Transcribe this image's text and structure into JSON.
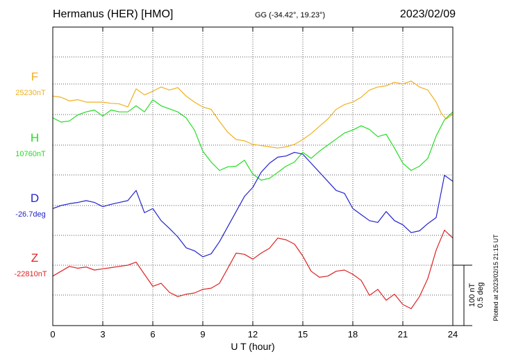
{
  "header": {
    "station": "Hermanus (HER)  [HMO]",
    "coords": "GG (-34.42°,  19.23°)",
    "date": "2023/02/09"
  },
  "footer": {
    "plotted": "Plotted at 2023/02/15 21:15 UT"
  },
  "scale": {
    "nt": "100 nT",
    "deg": "0.5 deg"
  },
  "chart_data": {
    "type": "line",
    "xlabel": "U T (hour)",
    "xlim": [
      0,
      24
    ],
    "xticks": [
      "0",
      "3",
      "6",
      "9",
      "12",
      "15",
      "18",
      "21",
      "24"
    ],
    "grid": true,
    "series": [
      {
        "name": "F",
        "baseline_label": "25230nT",
        "color": "#f0b020",
        "x": [
          0,
          0.5,
          1,
          1.5,
          2,
          2.5,
          3,
          3.5,
          4,
          4.5,
          5,
          5.5,
          6,
          6.5,
          7,
          7.5,
          8,
          8.5,
          9,
          9.5,
          10,
          10.5,
          11,
          11.5,
          12,
          12.5,
          13,
          13.5,
          14,
          14.5,
          15,
          15.5,
          16,
          16.5,
          17,
          17.5,
          18,
          18.5,
          19,
          19.5,
          20,
          20.5,
          21,
          21.5,
          22,
          22.5,
          23,
          23.3,
          23.6,
          24
        ],
        "values": [
          -20,
          -22,
          -28,
          -26,
          -30,
          -30,
          -30,
          -32,
          -33,
          -38,
          -8,
          -18,
          -12,
          -5,
          -10,
          -6,
          -20,
          -30,
          -38,
          -42,
          -62,
          -80,
          -92,
          -94,
          -100,
          -102,
          -104,
          -106,
          -104,
          -100,
          -92,
          -82,
          -70,
          -58,
          -42,
          -34,
          -30,
          -22,
          -10,
          -5,
          -3,
          3,
          0,
          5,
          -5,
          -10,
          -30,
          -48,
          -58,
          -50
        ]
      },
      {
        "name": "H",
        "baseline_label": "10760nT",
        "color": "#22dd22",
        "x": [
          0,
          0.5,
          1,
          1.5,
          2,
          2.5,
          3,
          3.5,
          4,
          4.5,
          5,
          5.5,
          6,
          6.5,
          7,
          7.5,
          8,
          8.5,
          9,
          9.5,
          10,
          10.5,
          11,
          11.5,
          12,
          12.5,
          13,
          13.5,
          14,
          14.5,
          15,
          15.5,
          16,
          16.5,
          17,
          17.5,
          18,
          18.5,
          19,
          19.5,
          20,
          20.5,
          21,
          21.5,
          22,
          22.5,
          23,
          23.5,
          24
        ],
        "values": [
          45,
          38,
          40,
          50,
          55,
          58,
          48,
          58,
          55,
          55,
          65,
          55,
          75,
          65,
          60,
          55,
          45,
          25,
          -10,
          -28,
          -42,
          -36,
          -35,
          -25,
          -48,
          -58,
          -55,
          -45,
          -35,
          -28,
          -12,
          -22,
          -10,
          0,
          10,
          20,
          25,
          32,
          26,
          14,
          18,
          -5,
          -30,
          -42,
          -35,
          -22,
          15,
          42,
          55
        ]
      },
      {
        "name": "D",
        "baseline_label": "-26.7deg",
        "color": "#2222cc",
        "x": [
          0,
          0.5,
          1,
          1.5,
          2,
          2.5,
          3,
          3.5,
          4,
          4.5,
          5,
          5.5,
          6,
          6.5,
          7,
          7.5,
          8,
          8.5,
          9,
          9.5,
          10,
          10.5,
          11,
          11.5,
          12,
          12.5,
          13,
          13.5,
          14,
          14.5,
          15,
          15.5,
          16,
          16.5,
          17,
          17.5,
          18,
          18.5,
          19,
          19.5,
          20,
          20.5,
          21,
          21.5,
          22,
          22.5,
          23,
          23.5,
          24
        ],
        "values": [
          -5,
          0,
          3,
          5,
          8,
          5,
          -2,
          2,
          5,
          8,
          25,
          -12,
          -5,
          -25,
          -38,
          -52,
          -70,
          -75,
          -85,
          -80,
          -60,
          -35,
          -10,
          15,
          30,
          55,
          70,
          80,
          82,
          88,
          85,
          70,
          55,
          40,
          25,
          20,
          -5,
          -15,
          -25,
          -28,
          -10,
          -25,
          -32,
          -45,
          -42,
          -30,
          -20,
          50,
          40
        ]
      },
      {
        "name": "Z",
        "baseline_label": "-22810nT",
        "color": "#dd2222",
        "x": [
          0,
          0.5,
          1,
          1.5,
          2,
          2.5,
          3,
          3.5,
          4,
          4.5,
          5,
          5.5,
          6,
          6.5,
          7,
          7.5,
          8,
          8.5,
          9,
          9.5,
          10,
          10.5,
          11,
          11.5,
          12,
          12.5,
          13,
          13.5,
          14,
          14.5,
          15,
          15.5,
          16,
          16.5,
          17,
          17.5,
          18,
          18.5,
          19,
          19.5,
          20,
          20.5,
          21,
          21.5,
          22,
          22.5,
          23,
          23.5,
          24
        ],
        "values": [
          -18,
          -10,
          -2,
          -5,
          -3,
          -8,
          -6,
          -4,
          -2,
          0,
          5,
          -15,
          -35,
          -30,
          -45,
          -52,
          -48,
          -46,
          -40,
          -38,
          -30,
          -5,
          20,
          18,
          10,
          20,
          28,
          45,
          42,
          35,
          15,
          -10,
          -20,
          -18,
          -10,
          -8,
          -15,
          -25,
          -50,
          -40,
          -58,
          -48,
          -65,
          -72,
          -52,
          -22,
          25,
          58,
          45
        ]
      }
    ]
  }
}
